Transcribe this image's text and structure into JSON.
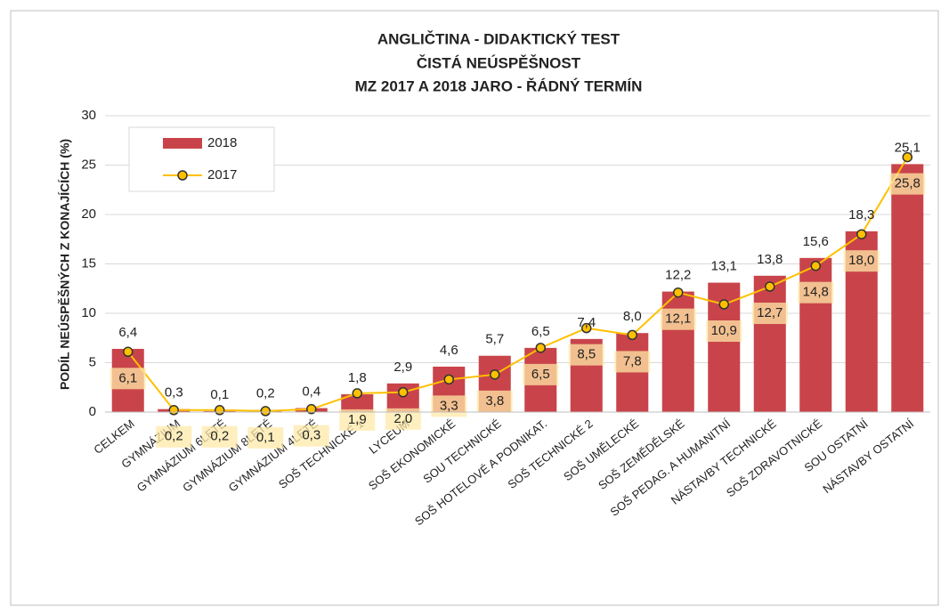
{
  "chart_data": {
    "type": "bar_line",
    "title": "ANGLIČTINA - DIDAKTICKÝ TEST",
    "subtitle": [
      "ČISTÁ NEÚSPĚŠNOST",
      "MZ 2017 A 2018 JARO - ŘÁDNÝ TERMÍN"
    ],
    "y_label": "PODÍL NEÚSPĚŠNÝCH Z KONAJÍCÍCH (%)",
    "categories": [
      "CELKEM",
      "GYMNÁZIUM",
      "GYMNÁZIUM 6LETÉ",
      "GYMNÁZIUM 8LETÉ",
      "GYMNÁZIUM 4LETÉ",
      "SOŠ TECHNICKÉ 1",
      "LYCEUM",
      "SOŠ EKONOMICKÉ",
      "SOU TECHNICKÉ",
      "SOŠ HOTELOVÉ A PODNIKAT.",
      "SOŠ TECHNICKÉ 2",
      "SOŠ UMĚLECKÉ",
      "SOŠ ZEMĚDĚLSKÉ",
      "SOŠ PEDAG. A HUMANITNÍ",
      "NÁSTAVBY TECHNICKÉ",
      "SOŠ ZDRAVOTNICKÉ",
      "SOU OSTATNÍ",
      "NÁSTAVBY OSTATNÍ"
    ],
    "series": [
      {
        "name": "2018",
        "kind": "bar",
        "color": "#c9444a",
        "values": [
          6.4,
          0.3,
          0.1,
          0.2,
          0.4,
          1.8,
          2.9,
          4.6,
          5.7,
          6.5,
          7.4,
          8.0,
          12.2,
          13.1,
          13.8,
          15.6,
          18.3,
          25.1
        ],
        "value_labels": [
          "6,4",
          "0,3",
          "0,1",
          "0,2",
          "0,4",
          "1,8",
          "2,9",
          "4,6",
          "5,7",
          "6,5",
          "7,4",
          "8,0",
          "12,2",
          "13,1",
          "13,8",
          "15,6",
          "18,3",
          "25,1"
        ]
      },
      {
        "name": "2017",
        "kind": "line",
        "color": "#ffc000",
        "values": [
          6.1,
          0.2,
          0.2,
          0.1,
          0.3,
          1.9,
          2.0,
          3.3,
          3.8,
          6.5,
          8.5,
          7.8,
          12.1,
          10.9,
          12.7,
          14.8,
          18.0,
          25.8
        ],
        "value_labels": [
          "6,1",
          "0,2",
          "0,2",
          "0,1",
          "0,3",
          "1,9",
          "2,0",
          "3,3",
          "3,8",
          "6,5",
          "8,5",
          "7,8",
          "12,1",
          "10,9",
          "12,7",
          "14,8",
          "18,0",
          "25,8"
        ]
      }
    ],
    "ylim": [
      0,
      30
    ],
    "yticks": [
      0,
      5,
      10,
      15,
      20,
      25,
      30
    ],
    "grid": true,
    "legend": "upper left"
  }
}
